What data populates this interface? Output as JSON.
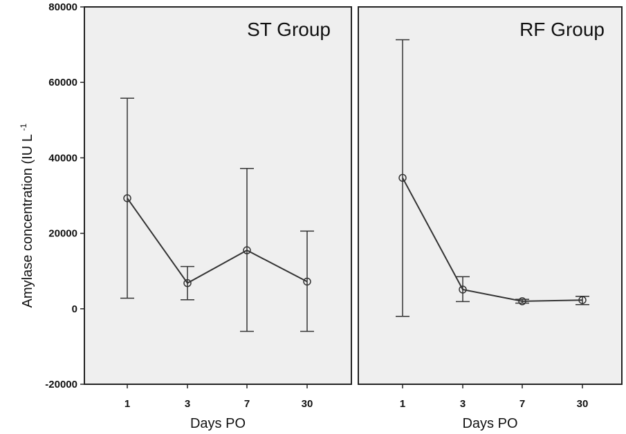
{
  "y_axis_label": "Amylase concentration (IU L",
  "y_axis_label_sup": "-1",
  "chart_data": [
    {
      "type": "line",
      "title": "ST Group",
      "xlabel": "Days PO",
      "ylabel": "Amylase concentration (IU L-1)",
      "categories": [
        "1",
        "3",
        "7",
        "30"
      ],
      "values": [
        29300,
        6800,
        15500,
        7200
      ],
      "error_upper": [
        55800,
        11200,
        37200,
        20600
      ],
      "error_lower": [
        2800,
        2400,
        -6000,
        -6000
      ],
      "ylim": [
        -20000,
        80000
      ],
      "yticks": [
        "-20000",
        "0",
        "20000",
        "40000",
        "60000",
        "80000"
      ],
      "grid": false
    },
    {
      "type": "line",
      "title": "RF Group",
      "xlabel": "Days PO",
      "categories": [
        "1",
        "3",
        "7",
        "30"
      ],
      "values": [
        34700,
        5100,
        2000,
        2300
      ],
      "error_upper": [
        71300,
        8500,
        2500,
        3300
      ],
      "error_lower": [
        -2000,
        1900,
        1500,
        1100
      ],
      "ylim": [
        -20000,
        80000
      ],
      "grid": false
    }
  ]
}
